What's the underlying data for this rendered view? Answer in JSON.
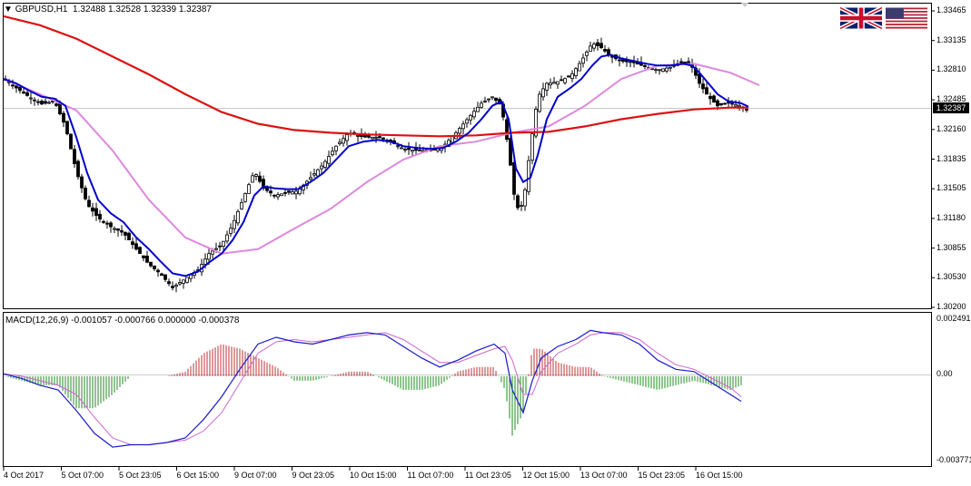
{
  "header": {
    "symbol_timeframe": "GBPUSD,H1",
    "ohlc": "1.32488 1.32528 1.32339 1.32387"
  },
  "flags": [
    "uk-flag-icon",
    "us-flag-icon"
  ],
  "main_pane": {
    "current_price_label": "1.32387",
    "price_axis": [
      "1.33465",
      "1.33135",
      "1.32810",
      "1.32485",
      "1.32160",
      "1.31835",
      "1.31505",
      "1.31180",
      "1.30855",
      "1.30530",
      "1.30200"
    ]
  },
  "macd_pane": {
    "label": "MACD(12,26,9) -0.001057 -0.000766 0.000000 -0.000378",
    "axis": [
      "0.002491",
      "0.00",
      "-0.003771"
    ]
  },
  "time_axis": [
    "4 Oct 2017",
    "5 Oct 07:00",
    "5 Oct 23:05",
    "6 Oct 15:00",
    "9 Oct 07:00",
    "9 Oct 23:05",
    "10 Oct 15:00",
    "11 Oct 07:00",
    "11 Oct 23:05",
    "12 Oct 15:00",
    "13 Oct 07:00",
    "15 Oct 23:05",
    "16 Oct 15:00"
  ],
  "colors": {
    "ma_fast": "#0000cc",
    "ma_slow": "#dd1111",
    "ma_mid": "#dd88dd",
    "hist_pos": "#bb3333",
    "hist_neg": "#228822",
    "macd_line": "#1a1acc",
    "signal_line": "#cc66cc"
  },
  "chart_data": {
    "type": "candlestick",
    "symbol": "GBPUSD",
    "timeframe": "H1",
    "ylim": [
      1.302,
      1.3351
    ],
    "price_path": [
      [
        0,
        1.3275
      ],
      [
        14,
        1.3265
      ],
      [
        28,
        1.3255
      ],
      [
        42,
        1.3247
      ],
      [
        56,
        1.325
      ],
      [
        68,
        1.3222
      ],
      [
        80,
        1.3172
      ],
      [
        92,
        1.3135
      ],
      [
        104,
        1.312
      ],
      [
        118,
        1.311
      ],
      [
        132,
        1.3103
      ],
      [
        146,
        1.3085
      ],
      [
        160,
        1.3068
      ],
      [
        172,
        1.3058
      ],
      [
        186,
        1.3042
      ],
      [
        200,
        1.3052
      ],
      [
        214,
        1.3062
      ],
      [
        226,
        1.308
      ],
      [
        240,
        1.309
      ],
      [
        252,
        1.3112
      ],
      [
        264,
        1.3142
      ],
      [
        276,
        1.3172
      ],
      [
        286,
        1.3153
      ],
      [
        298,
        1.3145
      ],
      [
        312,
        1.3148
      ],
      [
        324,
        1.315
      ],
      [
        338,
        1.3165
      ],
      [
        352,
        1.318
      ],
      [
        366,
        1.32
      ],
      [
        380,
        1.3215
      ],
      [
        396,
        1.321
      ],
      [
        412,
        1.321
      ],
      [
        426,
        1.3205
      ],
      [
        440,
        1.3197
      ],
      [
        456,
        1.3195
      ],
      [
        470,
        1.3195
      ],
      [
        484,
        1.32
      ],
      [
        498,
        1.3215
      ],
      [
        512,
        1.3232
      ],
      [
        526,
        1.3248
      ],
      [
        538,
        1.3255
      ],
      [
        548,
        1.3245
      ],
      [
        556,
        1.3195
      ],
      [
        564,
        1.313
      ],
      [
        572,
        1.3135
      ],
      [
        580,
        1.32
      ],
      [
        588,
        1.3255
      ],
      [
        598,
        1.327
      ],
      [
        610,
        1.3272
      ],
      [
        624,
        1.3278
      ],
      [
        636,
        1.3295
      ],
      [
        648,
        1.3315
      ],
      [
        658,
        1.331
      ],
      [
        668,
        1.33
      ],
      [
        680,
        1.3295
      ],
      [
        694,
        1.3293
      ],
      [
        708,
        1.3288
      ],
      [
        720,
        1.3285
      ],
      [
        734,
        1.3288
      ],
      [
        748,
        1.3295
      ],
      [
        758,
        1.3288
      ],
      [
        766,
        1.327
      ],
      [
        776,
        1.3255
      ],
      [
        786,
        1.3245
      ],
      [
        798,
        1.3248
      ],
      [
        812,
        1.3245
      ],
      [
        820,
        1.3239
      ]
    ],
    "ma_fast": [
      [
        0,
        1.3275
      ],
      [
        14,
        1.327
      ],
      [
        28,
        1.3262
      ],
      [
        42,
        1.3255
      ],
      [
        56,
        1.3253
      ],
      [
        68,
        1.3245
      ],
      [
        80,
        1.321
      ],
      [
        92,
        1.317
      ],
      [
        104,
        1.314
      ],
      [
        118,
        1.3125
      ],
      [
        132,
        1.3115
      ],
      [
        146,
        1.3098
      ],
      [
        160,
        1.3085
      ],
      [
        172,
        1.3072
      ],
      [
        186,
        1.3058
      ],
      [
        200,
        1.3055
      ],
      [
        214,
        1.306
      ],
      [
        226,
        1.307
      ],
      [
        240,
        1.308
      ],
      [
        252,
        1.3095
      ],
      [
        264,
        1.3115
      ],
      [
        276,
        1.3145
      ],
      [
        286,
        1.3155
      ],
      [
        298,
        1.3153
      ],
      [
        312,
        1.3152
      ],
      [
        324,
        1.3152
      ],
      [
        338,
        1.316
      ],
      [
        352,
        1.317
      ],
      [
        366,
        1.3185
      ],
      [
        380,
        1.32
      ],
      [
        396,
        1.3205
      ],
      [
        412,
        1.3207
      ],
      [
        426,
        1.3205
      ],
      [
        440,
        1.32
      ],
      [
        456,
        1.3198
      ],
      [
        470,
        1.3197
      ],
      [
        484,
        1.3198
      ],
      [
        498,
        1.3205
      ],
      [
        512,
        1.3215
      ],
      [
        526,
        1.323
      ],
      [
        538,
        1.3245
      ],
      [
        548,
        1.325
      ],
      [
        556,
        1.323
      ],
      [
        564,
        1.3175
      ],
      [
        572,
        1.316
      ],
      [
        580,
        1.3165
      ],
      [
        588,
        1.319
      ],
      [
        598,
        1.323
      ],
      [
        610,
        1.3255
      ],
      [
        624,
        1.3265
      ],
      [
        636,
        1.3275
      ],
      [
        648,
        1.329
      ],
      [
        658,
        1.33
      ],
      [
        668,
        1.3302
      ],
      [
        680,
        1.3298
      ],
      [
        694,
        1.3295
      ],
      [
        708,
        1.3292
      ],
      [
        720,
        1.329
      ],
      [
        734,
        1.329
      ],
      [
        748,
        1.3292
      ],
      [
        758,
        1.329
      ],
      [
        766,
        1.3282
      ],
      [
        776,
        1.327
      ],
      [
        786,
        1.3258
      ],
      [
        798,
        1.325
      ],
      [
        812,
        1.3248
      ],
      [
        820,
        1.3244
      ]
    ],
    "ma_slow": [
      [
        0,
        1.3345
      ],
      [
        40,
        1.3335
      ],
      [
        80,
        1.332
      ],
      [
        120,
        1.33
      ],
      [
        160,
        1.328
      ],
      [
        200,
        1.3258
      ],
      [
        240,
        1.3238
      ],
      [
        280,
        1.3225
      ],
      [
        320,
        1.3218
      ],
      [
        360,
        1.3215
      ],
      [
        400,
        1.3213
      ],
      [
        440,
        1.3212
      ],
      [
        480,
        1.3211
      ],
      [
        520,
        1.3212
      ],
      [
        560,
        1.3215
      ],
      [
        600,
        1.3216
      ],
      [
        640,
        1.3222
      ],
      [
        680,
        1.323
      ],
      [
        720,
        1.3236
      ],
      [
        760,
        1.3241
      ],
      [
        800,
        1.3243
      ],
      [
        820,
        1.3243
      ]
    ],
    "ma_mid": [
      [
        0,
        1.3275
      ],
      [
        40,
        1.3258
      ],
      [
        80,
        1.324
      ],
      [
        120,
        1.3195
      ],
      [
        160,
        1.314
      ],
      [
        200,
        1.3098
      ],
      [
        240,
        1.308
      ],
      [
        280,
        1.3085
      ],
      [
        320,
        1.3108
      ],
      [
        360,
        1.313
      ],
      [
        400,
        1.316
      ],
      [
        440,
        1.3185
      ],
      [
        480,
        1.32
      ],
      [
        520,
        1.3205
      ],
      [
        560,
        1.3215
      ],
      [
        600,
        1.3222
      ],
      [
        640,
        1.3245
      ],
      [
        680,
        1.3275
      ],
      [
        720,
        1.329
      ],
      [
        760,
        1.3292
      ],
      [
        800,
        1.3282
      ],
      [
        832,
        1.3268
      ]
    ],
    "macd": {
      "ylim": [
        -0.003771,
        0.002491
      ],
      "macd_line": [
        [
          0,
          0.0001
        ],
        [
          20,
          -0.0001
        ],
        [
          40,
          -0.0004
        ],
        [
          60,
          -0.0006
        ],
        [
          80,
          -0.0015
        ],
        [
          100,
          -0.0025
        ],
        [
          120,
          -0.0031
        ],
        [
          140,
          -0.003
        ],
        [
          160,
          -0.003
        ],
        [
          180,
          -0.0029
        ],
        [
          200,
          -0.0027
        ],
        [
          220,
          -0.0019
        ],
        [
          240,
          -0.0009
        ],
        [
          260,
          0.0003
        ],
        [
          280,
          0.0014
        ],
        [
          300,
          0.0017
        ],
        [
          320,
          0.0015
        ],
        [
          340,
          0.0014
        ],
        [
          360,
          0.0016
        ],
        [
          380,
          0.0018
        ],
        [
          400,
          0.0019
        ],
        [
          420,
          0.0018
        ],
        [
          440,
          0.0013
        ],
        [
          460,
          0.0008
        ],
        [
          480,
          0.0004
        ],
        [
          500,
          0.0007
        ],
        [
          520,
          0.0011
        ],
        [
          540,
          0.0014
        ],
        [
          552,
          0.001
        ],
        [
          560,
          -0.0006
        ],
        [
          572,
          -0.0016
        ],
        [
          582,
          -0.0002
        ],
        [
          592,
          0.0008
        ],
        [
          610,
          0.0013
        ],
        [
          630,
          0.0016
        ],
        [
          646,
          0.002
        ],
        [
          660,
          0.0019
        ],
        [
          680,
          0.0018
        ],
        [
          700,
          0.0014
        ],
        [
          720,
          0.0007
        ],
        [
          740,
          0.0003
        ],
        [
          760,
          0.0002
        ],
        [
          780,
          -0.0003
        ],
        [
          800,
          -0.0008
        ],
        [
          812,
          -0.0011
        ]
      ],
      "signal_line": [
        [
          0,
          0.0001
        ],
        [
          20,
          0.0
        ],
        [
          40,
          -0.0002
        ],
        [
          60,
          -0.0004
        ],
        [
          80,
          -0.0008
        ],
        [
          100,
          -0.0018
        ],
        [
          120,
          -0.0027
        ],
        [
          140,
          -0.003
        ],
        [
          160,
          -0.003
        ],
        [
          180,
          -0.0029
        ],
        [
          200,
          -0.0028
        ],
        [
          220,
          -0.0024
        ],
        [
          240,
          -0.0016
        ],
        [
          260,
          -0.0003
        ],
        [
          280,
          0.001
        ],
        [
          300,
          0.0015
        ],
        [
          320,
          0.0016
        ],
        [
          340,
          0.0015
        ],
        [
          360,
          0.0016
        ],
        [
          380,
          0.0017
        ],
        [
          400,
          0.0018
        ],
        [
          420,
          0.0019
        ],
        [
          440,
          0.0016
        ],
        [
          460,
          0.0011
        ],
        [
          480,
          0.0006
        ],
        [
          500,
          0.0006
        ],
        [
          520,
          0.0009
        ],
        [
          540,
          0.0012
        ],
        [
          552,
          0.0013
        ],
        [
          560,
          0.0007
        ],
        [
          572,
          -0.0008
        ],
        [
          582,
          -0.0008
        ],
        [
          592,
          0.0002
        ],
        [
          610,
          0.001
        ],
        [
          630,
          0.0014
        ],
        [
          646,
          0.0018
        ],
        [
          660,
          0.0019
        ],
        [
          680,
          0.0019
        ],
        [
          700,
          0.0016
        ],
        [
          720,
          0.001
        ],
        [
          740,
          0.0005
        ],
        [
          760,
          0.0003
        ],
        [
          780,
          -0.0001
        ],
        [
          800,
          -0.0005
        ],
        [
          812,
          -0.0009
        ]
      ]
    }
  }
}
